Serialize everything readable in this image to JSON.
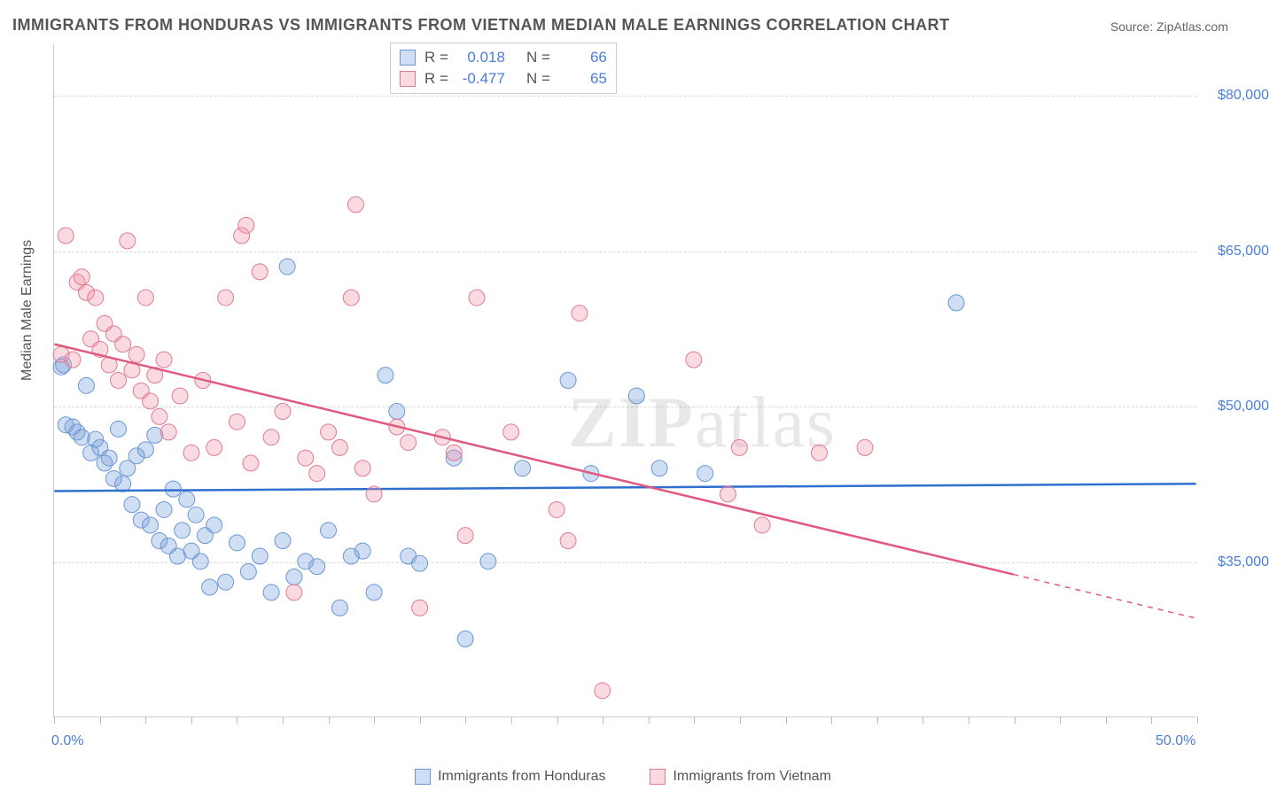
{
  "title": "IMMIGRANTS FROM HONDURAS VS IMMIGRANTS FROM VIETNAM MEDIAN MALE EARNINGS CORRELATION CHART",
  "source": "Source: ZipAtlas.com",
  "y_axis_label": "Median Male Earnings",
  "watermark_a": "ZIP",
  "watermark_b": "atlas",
  "chart": {
    "type": "scatter_with_regression",
    "xlim": [
      0,
      50
    ],
    "ylim": [
      20000,
      85000
    ],
    "x_start_label": "0.0%",
    "x_end_label": "50.0%",
    "x_ticks_percent": [
      0,
      2,
      4,
      6,
      8,
      10,
      12,
      14,
      16,
      18,
      20,
      22,
      24,
      26,
      28,
      30,
      32,
      34,
      36,
      38,
      40,
      42,
      44,
      46,
      48,
      50
    ],
    "y_gridlines": [
      35000,
      50000,
      65000,
      80000
    ],
    "y_tick_labels": {
      "35000": "$35,000",
      "50000": "$50,000",
      "65000": "$65,000",
      "80000": "$80,000"
    },
    "background_color": "#ffffff",
    "grid_color": "#d8d8d8",
    "axis_color": "#cccccc",
    "label_color": "#555555",
    "tick_label_color": "#4a7fd8",
    "marker_radius": 9,
    "marker_stroke_width": 1,
    "line_width": 2.5,
    "series": [
      {
        "name": "Immigrants from Honduras",
        "fill": "rgba(120,160,220,0.35)",
        "stroke": "#6a97d4",
        "line_color": "#2f6fd0",
        "R": "0.018",
        "N": "66",
        "regression": {
          "x1": 0,
          "y1": 41800,
          "x2": 50,
          "y2": 42500,
          "dash_from_x": null
        },
        "points": [
          [
            0.3,
            53800
          ],
          [
            0.4,
            54000
          ],
          [
            0.5,
            48200
          ],
          [
            0.8,
            48000
          ],
          [
            1.0,
            47500
          ],
          [
            1.2,
            47000
          ],
          [
            1.4,
            52000
          ],
          [
            1.6,
            45500
          ],
          [
            1.8,
            46800
          ],
          [
            2.0,
            46000
          ],
          [
            2.2,
            44500
          ],
          [
            2.4,
            45000
          ],
          [
            2.6,
            43000
          ],
          [
            2.8,
            47800
          ],
          [
            3.0,
            42500
          ],
          [
            3.2,
            44000
          ],
          [
            3.4,
            40500
          ],
          [
            3.6,
            45200
          ],
          [
            3.8,
            39000
          ],
          [
            4.0,
            45800
          ],
          [
            4.2,
            38500
          ],
          [
            4.4,
            47200
          ],
          [
            4.6,
            37000
          ],
          [
            4.8,
            40000
          ],
          [
            5.0,
            36500
          ],
          [
            5.2,
            42000
          ],
          [
            5.4,
            35500
          ],
          [
            5.6,
            38000
          ],
          [
            5.8,
            41000
          ],
          [
            6.0,
            36000
          ],
          [
            6.2,
            39500
          ],
          [
            6.4,
            35000
          ],
          [
            6.6,
            37500
          ],
          [
            6.8,
            32500
          ],
          [
            7.0,
            38500
          ],
          [
            7.5,
            33000
          ],
          [
            8.0,
            36800
          ],
          [
            8.5,
            34000
          ],
          [
            9.0,
            35500
          ],
          [
            9.5,
            32000
          ],
          [
            10.0,
            37000
          ],
          [
            10.2,
            63500
          ],
          [
            10.5,
            33500
          ],
          [
            11.0,
            35000
          ],
          [
            11.5,
            34500
          ],
          [
            12.0,
            38000
          ],
          [
            12.5,
            30500
          ],
          [
            13.0,
            35500
          ],
          [
            13.5,
            36000
          ],
          [
            14.0,
            32000
          ],
          [
            14.5,
            53000
          ],
          [
            15.0,
            49500
          ],
          [
            15.5,
            35500
          ],
          [
            16.0,
            34800
          ],
          [
            17.5,
            45000
          ],
          [
            18.0,
            27500
          ],
          [
            19.0,
            35000
          ],
          [
            20.5,
            44000
          ],
          [
            22.5,
            52500
          ],
          [
            23.5,
            43500
          ],
          [
            25.5,
            51000
          ],
          [
            26.5,
            44000
          ],
          [
            28.5,
            43500
          ],
          [
            39.5,
            60000
          ]
        ]
      },
      {
        "name": "Immigrants from Vietnam",
        "fill": "rgba(240,150,170,0.35)",
        "stroke": "#e07a94",
        "line_color": "#e05a7f",
        "R": "-0.477",
        "N": "65",
        "regression": {
          "x1": 0,
          "y1": 56000,
          "x2": 50,
          "y2": 29500,
          "dash_from_x": 42
        },
        "points": [
          [
            0.3,
            55000
          ],
          [
            0.5,
            66500
          ],
          [
            0.8,
            54500
          ],
          [
            1.0,
            62000
          ],
          [
            1.2,
            62500
          ],
          [
            1.4,
            61000
          ],
          [
            1.6,
            56500
          ],
          [
            1.8,
            60500
          ],
          [
            2.0,
            55500
          ],
          [
            2.2,
            58000
          ],
          [
            2.4,
            54000
          ],
          [
            2.6,
            57000
          ],
          [
            2.8,
            52500
          ],
          [
            3.0,
            56000
          ],
          [
            3.2,
            66000
          ],
          [
            3.4,
            53500
          ],
          [
            3.6,
            55000
          ],
          [
            3.8,
            51500
          ],
          [
            4.0,
            60500
          ],
          [
            4.2,
            50500
          ],
          [
            4.4,
            53000
          ],
          [
            4.6,
            49000
          ],
          [
            4.8,
            54500
          ],
          [
            5.0,
            47500
          ],
          [
            5.5,
            51000
          ],
          [
            6.0,
            45500
          ],
          [
            6.5,
            52500
          ],
          [
            7.0,
            46000
          ],
          [
            7.5,
            60500
          ],
          [
            8.0,
            48500
          ],
          [
            8.2,
            66500
          ],
          [
            8.4,
            67500
          ],
          [
            8.6,
            44500
          ],
          [
            9.0,
            63000
          ],
          [
            9.5,
            47000
          ],
          [
            10.0,
            49500
          ],
          [
            10.5,
            32000
          ],
          [
            11.0,
            45000
          ],
          [
            11.5,
            43500
          ],
          [
            12.0,
            47500
          ],
          [
            12.5,
            46000
          ],
          [
            13.0,
            60500
          ],
          [
            13.2,
            69500
          ],
          [
            13.5,
            44000
          ],
          [
            14.0,
            41500
          ],
          [
            15.0,
            48000
          ],
          [
            15.5,
            46500
          ],
          [
            16.0,
            30500
          ],
          [
            17.0,
            47000
          ],
          [
            17.5,
            45500
          ],
          [
            18.0,
            37500
          ],
          [
            18.5,
            60500
          ],
          [
            20.0,
            47500
          ],
          [
            22.0,
            40000
          ],
          [
            22.5,
            37000
          ],
          [
            23.0,
            59000
          ],
          [
            24.0,
            22500
          ],
          [
            28.0,
            54500
          ],
          [
            29.5,
            41500
          ],
          [
            30.0,
            46000
          ],
          [
            31.0,
            38500
          ],
          [
            33.5,
            45500
          ],
          [
            35.5,
            46000
          ]
        ]
      }
    ]
  },
  "legend": {
    "r_label": "R =",
    "n_label": "N ="
  }
}
